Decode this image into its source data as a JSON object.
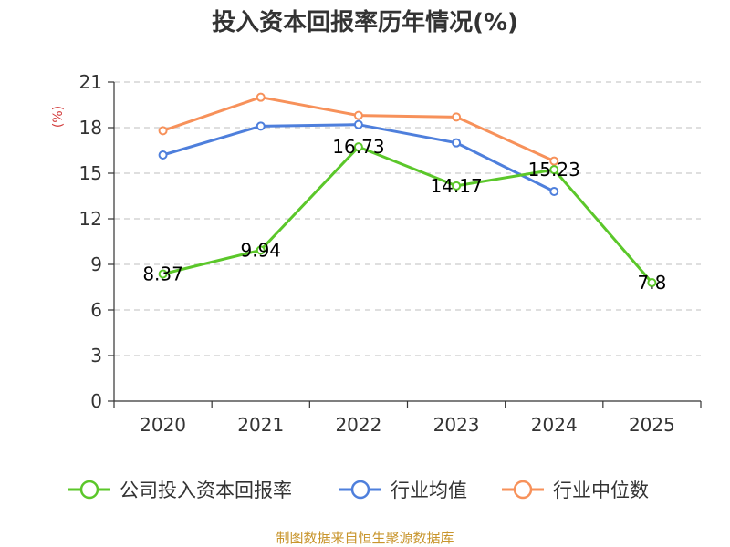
{
  "chart_data": {
    "type": "line",
    "title": "投入资本回报率历年情况(%)",
    "ylabel": "(%)",
    "categories": [
      "2020",
      "2021",
      "2022",
      "2023",
      "2024",
      "2025"
    ],
    "ylim": [
      0,
      21
    ],
    "yticks": [
      0,
      3,
      6,
      9,
      12,
      15,
      18,
      21
    ],
    "grid": true,
    "legend_position": "bottom",
    "series": [
      {
        "name": "公司投入资本回报率",
        "color": "#5bc72a",
        "values": [
          8.37,
          9.94,
          16.73,
          14.17,
          15.23,
          7.8
        ],
        "labels": [
          "8.37",
          "9.94",
          "16.73",
          "14.17",
          "15.23",
          "7.8"
        ]
      },
      {
        "name": "行业均值",
        "color": "#4e7fdc",
        "values": [
          16.2,
          18.1,
          18.2,
          17.0,
          13.8,
          null
        ]
      },
      {
        "name": "行业中位数",
        "color": "#f7915a",
        "values": [
          17.8,
          20.0,
          18.8,
          18.7,
          15.8,
          null
        ]
      }
    ]
  },
  "footer": "制图数据来自恒生聚源数据库",
  "colors": {
    "unit_label": "#d23a3a",
    "footer": "#c8952c",
    "axis": "#333333",
    "grid": "#cccccc"
  }
}
